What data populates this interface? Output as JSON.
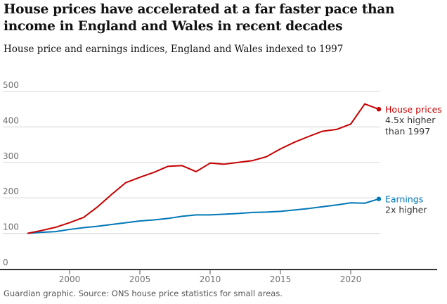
{
  "title": "House prices have accelerated at a far faster pace than income in England and Wales in recent decades",
  "subtitle": "House price and earnings indices, England and Wales indexed to 1997",
  "source": "Guardian graphic. Source: ONS house price statistics for small areas.",
  "chart_data": {
    "type": "line",
    "title": "House prices have accelerated at a far faster pace than income in England and Wales in recent decades",
    "xlabel": "",
    "ylabel": "",
    "xlim": [
      1997,
      2022
    ],
    "ylim": [
      0,
      500
    ],
    "yticks": [
      0,
      100,
      200,
      300,
      400,
      500
    ],
    "xticks": [
      2000,
      2005,
      2010,
      2015,
      2020
    ],
    "grid": true,
    "x": [
      1997,
      1998,
      1999,
      2000,
      2001,
      2002,
      2003,
      2004,
      2005,
      2006,
      2007,
      2008,
      2009,
      2010,
      2011,
      2012,
      2013,
      2014,
      2015,
      2016,
      2017,
      2018,
      2019,
      2020,
      2021,
      2022
    ],
    "series": [
      {
        "name": "House prices",
        "color": "#c70000",
        "note1": "4.5x higher",
        "note2": "than 1997",
        "values": [
          100,
          108,
          117,
          130,
          145,
          175,
          210,
          243,
          258,
          272,
          289,
          291,
          274,
          298,
          295,
          300,
          305,
          316,
          338,
          357,
          373,
          388,
          393,
          408,
          465,
          450
        ]
      },
      {
        "name": "Earnings",
        "color": "#0077b6",
        "note1": "2x higher",
        "values": [
          100,
          103,
          105,
          111,
          116,
          120,
          125,
          130,
          135,
          138,
          142,
          148,
          152,
          152,
          154,
          156,
          159,
          160,
          162,
          166,
          170,
          175,
          180,
          186,
          185,
          197
        ]
      }
    ]
  }
}
